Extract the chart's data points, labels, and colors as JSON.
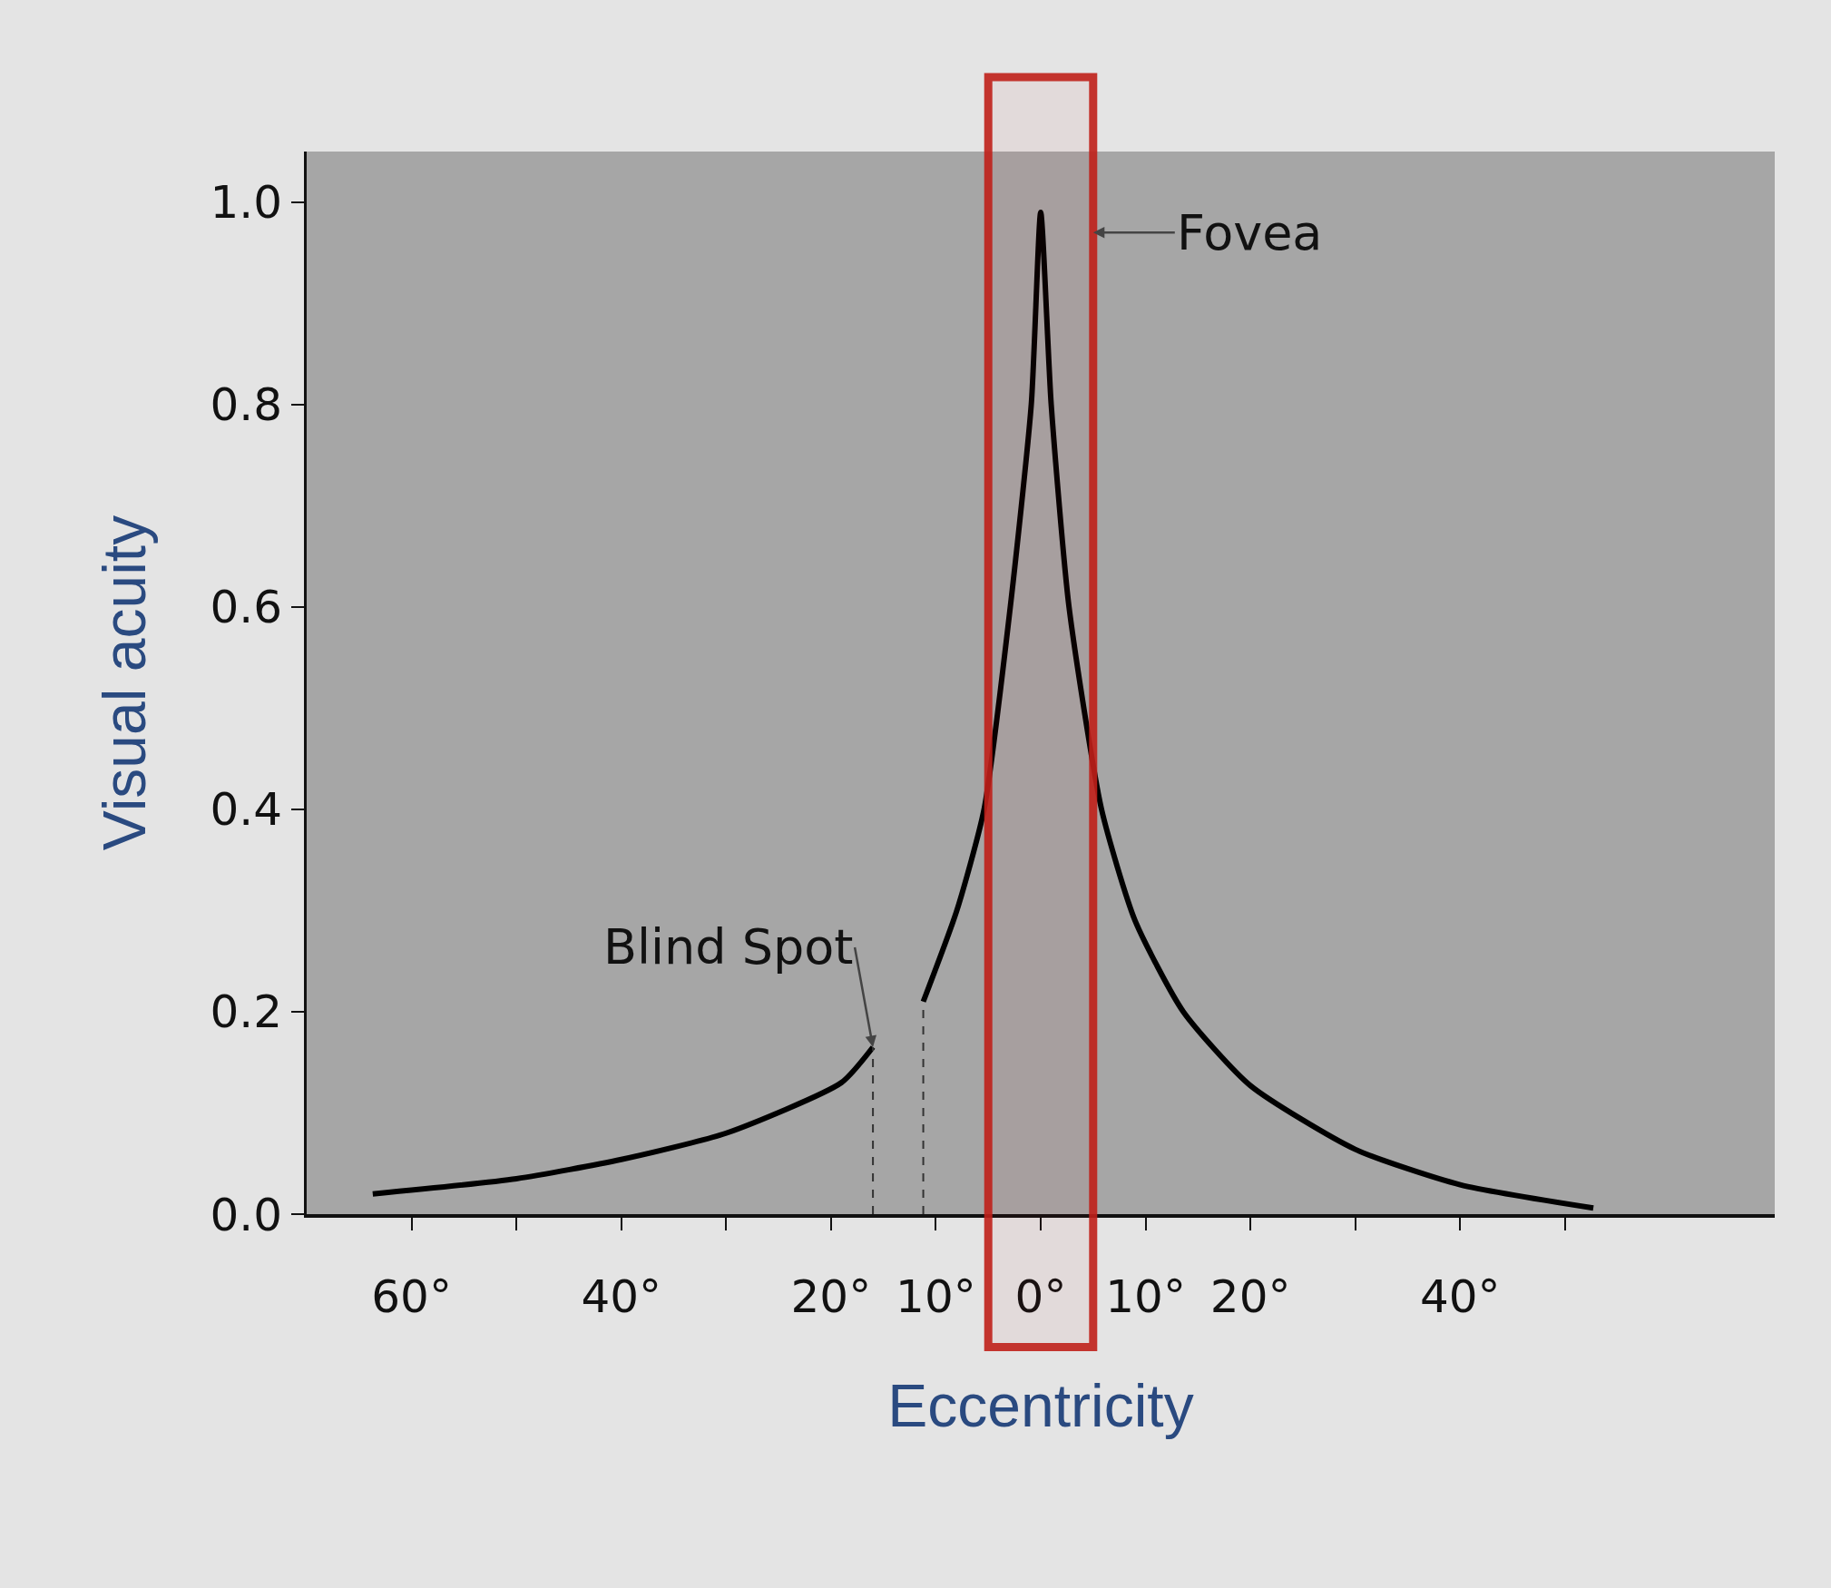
{
  "chart_data": {
    "type": "line",
    "xlabel": "Eccentricity",
    "ylabel": "Visual acuity",
    "series": [
      {
        "color": "#000000",
        "x": [
          -63.7,
          -50,
          -40,
          -30,
          -19,
          -16
        ],
        "values": [
          0.02,
          0.035,
          0.054,
          0.08,
          0.13,
          0.165
        ]
      },
      {
        "color": "#000000",
        "x": [
          -11.2,
          -8,
          -5.4,
          -2.9,
          -0.9,
          0,
          1,
          2.7,
          5.8,
          9,
          13.6,
          20,
          30,
          40,
          52.7
        ],
        "values": [
          0.21,
          0.3,
          0.4,
          0.6,
          0.8,
          0.99,
          0.8,
          0.6,
          0.4,
          0.29,
          0.2,
          0.127,
          0.064,
          0.029,
          0.006
        ]
      }
    ],
    "xlim": [
      -70,
      70
    ],
    "ylim": [
      0,
      1.05
    ],
    "xticks": [
      {
        "value": -60,
        "label": "60°"
      },
      {
        "value": -50,
        "label": null
      },
      {
        "value": -40,
        "label": "40°"
      },
      {
        "value": -30,
        "label": null
      },
      {
        "value": -20,
        "label": "20°"
      },
      {
        "value": -10,
        "label": "10°"
      },
      {
        "value": 0,
        "label": "0°"
      },
      {
        "value": 10,
        "label": "10°"
      },
      {
        "value": 20,
        "label": "20°"
      },
      {
        "value": 30,
        "label": null
      },
      {
        "value": 40,
        "label": "40°"
      },
      {
        "value": 50,
        "label": null
      }
    ],
    "yticks": [
      {
        "value": 0,
        "label": "0.0"
      },
      {
        "value": 0.2,
        "label": "0.2"
      },
      {
        "value": 0.4,
        "label": "0.4"
      },
      {
        "value": 0.6,
        "label": "0.6"
      },
      {
        "value": 0.8,
        "label": "0.8"
      },
      {
        "value": 1,
        "label": "1.0"
      }
    ],
    "ref_lines": [
      {
        "axis": "x",
        "value": -16,
        "line_style": "dashed",
        "color": "#333333"
      },
      {
        "axis": "x",
        "value": -11.2,
        "line_style": "dashed",
        "color": "#333333"
      }
    ],
    "bands": [
      {
        "axis": "x",
        "from": -5,
        "to": 5,
        "color": "#c0201a"
      }
    ],
    "annotations": [
      {
        "text": "Fovea",
        "x": 5,
        "y": 0.97
      },
      {
        "text": "Blind Spot",
        "x": -16,
        "y": 0.165
      }
    ],
    "grid": false,
    "marker": "none",
    "line_style": "solid"
  }
}
